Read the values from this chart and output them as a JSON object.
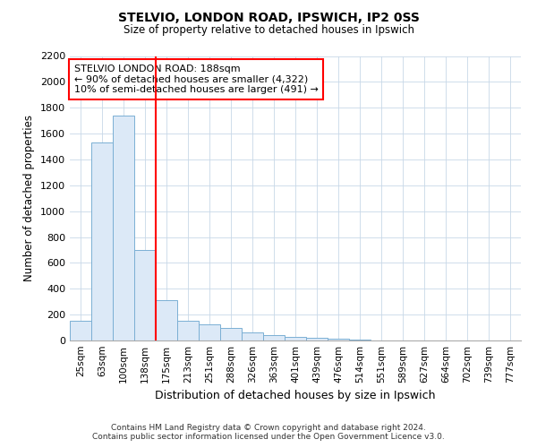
{
  "title": "STELVIO, LONDON ROAD, IPSWICH, IP2 0SS",
  "subtitle": "Size of property relative to detached houses in Ipswich",
  "xlabel": "Distribution of detached houses by size in Ipswich",
  "ylabel": "Number of detached properties",
  "categories": [
    "25sqm",
    "63sqm",
    "100sqm",
    "138sqm",
    "175sqm",
    "213sqm",
    "251sqm",
    "288sqm",
    "326sqm",
    "363sqm",
    "401sqm",
    "439sqm",
    "476sqm",
    "514sqm",
    "551sqm",
    "589sqm",
    "627sqm",
    "664sqm",
    "702sqm",
    "739sqm",
    "777sqm"
  ],
  "values": [
    150,
    1530,
    1740,
    700,
    310,
    155,
    125,
    95,
    65,
    45,
    30,
    20,
    15,
    5,
    2,
    1,
    0,
    0,
    0,
    0,
    0
  ],
  "bar_color": "#dce9f7",
  "bar_edge_color": "#7bafd4",
  "red_line_x": 3.5,
  "annotation_title": "STELVIO LONDON ROAD: 188sqm",
  "annotation_line1": "← 90% of detached houses are smaller (4,322)",
  "annotation_line2": "10% of semi-detached houses are larger (491) →",
  "ylim": [
    0,
    2200
  ],
  "yticks": [
    0,
    200,
    400,
    600,
    800,
    1000,
    1200,
    1400,
    1600,
    1800,
    2000,
    2200
  ],
  "background_color": "#ffffff",
  "grid_color": "#c8d8e8",
  "footer1": "Contains HM Land Registry data © Crown copyright and database right 2024.",
  "footer2": "Contains public sector information licensed under the Open Government Licence v3.0."
}
